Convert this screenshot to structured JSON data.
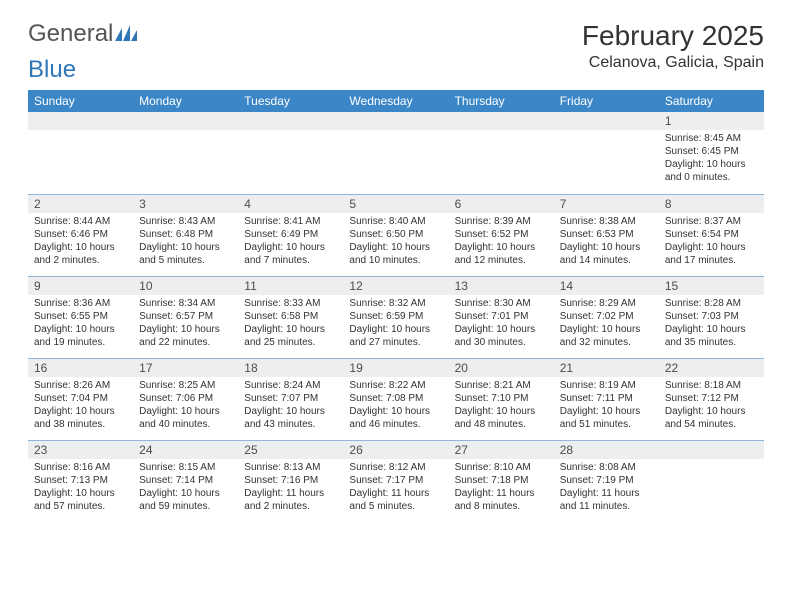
{
  "logo": {
    "text1": "General",
    "text2": "Blue"
  },
  "title": "February 2025",
  "location": "Celanova, Galicia, Spain",
  "colors": {
    "header_bg": "#3b86c6",
    "header_fg": "#ffffff",
    "daynum_bg": "#eceeef",
    "row_border": "#93b6d6",
    "logo_blue": "#2f77b8"
  },
  "weekdays": [
    "Sunday",
    "Monday",
    "Tuesday",
    "Wednesday",
    "Thursday",
    "Friday",
    "Saturday"
  ],
  "weeks": [
    [
      {
        "n": "",
        "sunrise": "",
        "sunset": "",
        "daylight": ""
      },
      {
        "n": "",
        "sunrise": "",
        "sunset": "",
        "daylight": ""
      },
      {
        "n": "",
        "sunrise": "",
        "sunset": "",
        "daylight": ""
      },
      {
        "n": "",
        "sunrise": "",
        "sunset": "",
        "daylight": ""
      },
      {
        "n": "",
        "sunrise": "",
        "sunset": "",
        "daylight": ""
      },
      {
        "n": "",
        "sunrise": "",
        "sunset": "",
        "daylight": ""
      },
      {
        "n": "1",
        "sunrise": "Sunrise: 8:45 AM",
        "sunset": "Sunset: 6:45 PM",
        "daylight": "Daylight: 10 hours and 0 minutes."
      }
    ],
    [
      {
        "n": "2",
        "sunrise": "Sunrise: 8:44 AM",
        "sunset": "Sunset: 6:46 PM",
        "daylight": "Daylight: 10 hours and 2 minutes."
      },
      {
        "n": "3",
        "sunrise": "Sunrise: 8:43 AM",
        "sunset": "Sunset: 6:48 PM",
        "daylight": "Daylight: 10 hours and 5 minutes."
      },
      {
        "n": "4",
        "sunrise": "Sunrise: 8:41 AM",
        "sunset": "Sunset: 6:49 PM",
        "daylight": "Daylight: 10 hours and 7 minutes."
      },
      {
        "n": "5",
        "sunrise": "Sunrise: 8:40 AM",
        "sunset": "Sunset: 6:50 PM",
        "daylight": "Daylight: 10 hours and 10 minutes."
      },
      {
        "n": "6",
        "sunrise": "Sunrise: 8:39 AM",
        "sunset": "Sunset: 6:52 PM",
        "daylight": "Daylight: 10 hours and 12 minutes."
      },
      {
        "n": "7",
        "sunrise": "Sunrise: 8:38 AM",
        "sunset": "Sunset: 6:53 PM",
        "daylight": "Daylight: 10 hours and 14 minutes."
      },
      {
        "n": "8",
        "sunrise": "Sunrise: 8:37 AM",
        "sunset": "Sunset: 6:54 PM",
        "daylight": "Daylight: 10 hours and 17 minutes."
      }
    ],
    [
      {
        "n": "9",
        "sunrise": "Sunrise: 8:36 AM",
        "sunset": "Sunset: 6:55 PM",
        "daylight": "Daylight: 10 hours and 19 minutes."
      },
      {
        "n": "10",
        "sunrise": "Sunrise: 8:34 AM",
        "sunset": "Sunset: 6:57 PM",
        "daylight": "Daylight: 10 hours and 22 minutes."
      },
      {
        "n": "11",
        "sunrise": "Sunrise: 8:33 AM",
        "sunset": "Sunset: 6:58 PM",
        "daylight": "Daylight: 10 hours and 25 minutes."
      },
      {
        "n": "12",
        "sunrise": "Sunrise: 8:32 AM",
        "sunset": "Sunset: 6:59 PM",
        "daylight": "Daylight: 10 hours and 27 minutes."
      },
      {
        "n": "13",
        "sunrise": "Sunrise: 8:30 AM",
        "sunset": "Sunset: 7:01 PM",
        "daylight": "Daylight: 10 hours and 30 minutes."
      },
      {
        "n": "14",
        "sunrise": "Sunrise: 8:29 AM",
        "sunset": "Sunset: 7:02 PM",
        "daylight": "Daylight: 10 hours and 32 minutes."
      },
      {
        "n": "15",
        "sunrise": "Sunrise: 8:28 AM",
        "sunset": "Sunset: 7:03 PM",
        "daylight": "Daylight: 10 hours and 35 minutes."
      }
    ],
    [
      {
        "n": "16",
        "sunrise": "Sunrise: 8:26 AM",
        "sunset": "Sunset: 7:04 PM",
        "daylight": "Daylight: 10 hours and 38 minutes."
      },
      {
        "n": "17",
        "sunrise": "Sunrise: 8:25 AM",
        "sunset": "Sunset: 7:06 PM",
        "daylight": "Daylight: 10 hours and 40 minutes."
      },
      {
        "n": "18",
        "sunrise": "Sunrise: 8:24 AM",
        "sunset": "Sunset: 7:07 PM",
        "daylight": "Daylight: 10 hours and 43 minutes."
      },
      {
        "n": "19",
        "sunrise": "Sunrise: 8:22 AM",
        "sunset": "Sunset: 7:08 PM",
        "daylight": "Daylight: 10 hours and 46 minutes."
      },
      {
        "n": "20",
        "sunrise": "Sunrise: 8:21 AM",
        "sunset": "Sunset: 7:10 PM",
        "daylight": "Daylight: 10 hours and 48 minutes."
      },
      {
        "n": "21",
        "sunrise": "Sunrise: 8:19 AM",
        "sunset": "Sunset: 7:11 PM",
        "daylight": "Daylight: 10 hours and 51 minutes."
      },
      {
        "n": "22",
        "sunrise": "Sunrise: 8:18 AM",
        "sunset": "Sunset: 7:12 PM",
        "daylight": "Daylight: 10 hours and 54 minutes."
      }
    ],
    [
      {
        "n": "23",
        "sunrise": "Sunrise: 8:16 AM",
        "sunset": "Sunset: 7:13 PM",
        "daylight": "Daylight: 10 hours and 57 minutes."
      },
      {
        "n": "24",
        "sunrise": "Sunrise: 8:15 AM",
        "sunset": "Sunset: 7:14 PM",
        "daylight": "Daylight: 10 hours and 59 minutes."
      },
      {
        "n": "25",
        "sunrise": "Sunrise: 8:13 AM",
        "sunset": "Sunset: 7:16 PM",
        "daylight": "Daylight: 11 hours and 2 minutes."
      },
      {
        "n": "26",
        "sunrise": "Sunrise: 8:12 AM",
        "sunset": "Sunset: 7:17 PM",
        "daylight": "Daylight: 11 hours and 5 minutes."
      },
      {
        "n": "27",
        "sunrise": "Sunrise: 8:10 AM",
        "sunset": "Sunset: 7:18 PM",
        "daylight": "Daylight: 11 hours and 8 minutes."
      },
      {
        "n": "28",
        "sunrise": "Sunrise: 8:08 AM",
        "sunset": "Sunset: 7:19 PM",
        "daylight": "Daylight: 11 hours and 11 minutes."
      },
      {
        "n": "",
        "sunrise": "",
        "sunset": "",
        "daylight": ""
      }
    ]
  ]
}
